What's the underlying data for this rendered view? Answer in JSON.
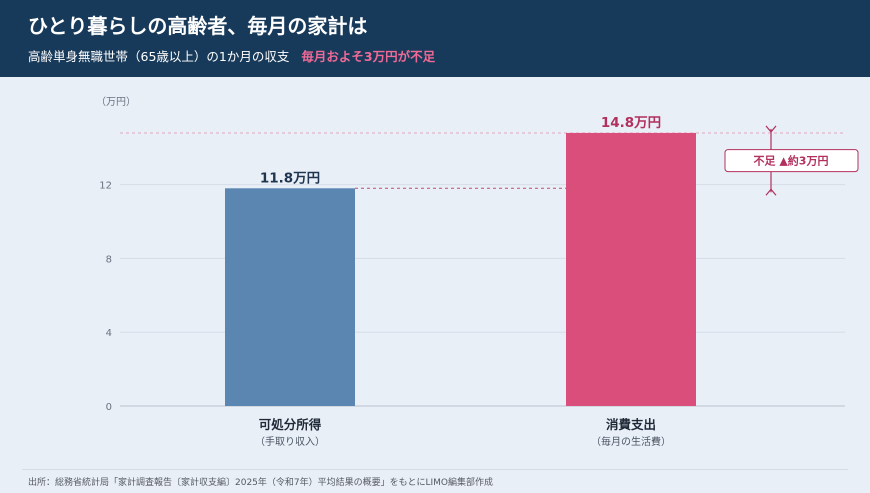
{
  "header": {
    "title": "ひとり暮らしの高齢者、毎月の家計は",
    "subtitle": "高齢単身無職世帯（65歳以上）の1か月の収支",
    "highlight": "毎月およそ3万円が不足"
  },
  "chart_data": {
    "type": "bar",
    "unit_label": "（万円）",
    "categories": [
      "可処分所得",
      "消費支出"
    ],
    "sublabels": [
      "（手取り収入）",
      "（毎月の生活費）"
    ],
    "values": [
      11.8,
      14.8
    ],
    "value_labels": [
      "11.8万円",
      "14.8万円"
    ],
    "colors": [
      "#5b86b2",
      "#d94e7a"
    ],
    "yticks": [
      0,
      4,
      8,
      12
    ],
    "ylim": [
      0,
      16
    ],
    "grid": true,
    "annotation": {
      "text": "不足 ▲約3万円",
      "color": "#b2305e"
    }
  },
  "footer": {
    "source": "出所：総務省統計局「家計調査報告〔家計収支編〕2025年（令和7年）平均結果の概要」をもとにLIMO編集部作成"
  }
}
